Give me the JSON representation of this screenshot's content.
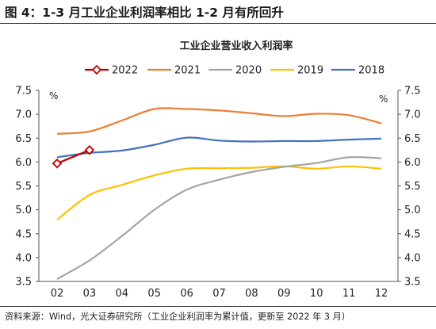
{
  "figure_title": "图 4：1-3 月工业企业利润率相比 1-2 月有所回升",
  "source_note": "资料来源：Wind，光大证券研究所（工业企业利润率为累计值，更新至 2022 年 3 月）",
  "chart_data": {
    "type": "line",
    "title": "工业企业营业收入利润率",
    "y_unit_left": "%",
    "y_unit_right": "%",
    "categories": [
      "02",
      "03",
      "04",
      "05",
      "06",
      "07",
      "08",
      "09",
      "10",
      "11",
      "12"
    ],
    "ylim": [
      3.5,
      7.5
    ],
    "yticks": [
      "3.5",
      "4.0",
      "4.5",
      "5.0",
      "5.5",
      "6.0",
      "6.5",
      "7.0",
      "7.5"
    ],
    "grid": false,
    "legend_position": "top",
    "series": [
      {
        "name": "2022",
        "color": "#c00000",
        "marker": "diamond",
        "values": [
          5.97,
          6.25,
          null,
          null,
          null,
          null,
          null,
          null,
          null,
          null,
          null
        ]
      },
      {
        "name": "2021",
        "color": "#ed7d31",
        "values": [
          6.59,
          6.64,
          6.87,
          7.11,
          7.11,
          7.08,
          7.02,
          6.96,
          7.01,
          6.98,
          6.81
        ]
      },
      {
        "name": "2020",
        "color": "#a5a5a5",
        "values": [
          3.55,
          3.94,
          4.45,
          5.0,
          5.42,
          5.63,
          5.79,
          5.9,
          5.98,
          6.1,
          6.08
        ]
      },
      {
        "name": "2019",
        "color": "#ffc000",
        "values": [
          4.79,
          5.31,
          5.52,
          5.72,
          5.86,
          5.87,
          5.88,
          5.91,
          5.86,
          5.91,
          5.86
        ]
      },
      {
        "name": "2018",
        "color": "#4472c4",
        "values": [
          6.1,
          6.19,
          6.24,
          6.36,
          6.51,
          6.45,
          6.43,
          6.44,
          6.44,
          6.47,
          6.49
        ]
      }
    ]
  }
}
